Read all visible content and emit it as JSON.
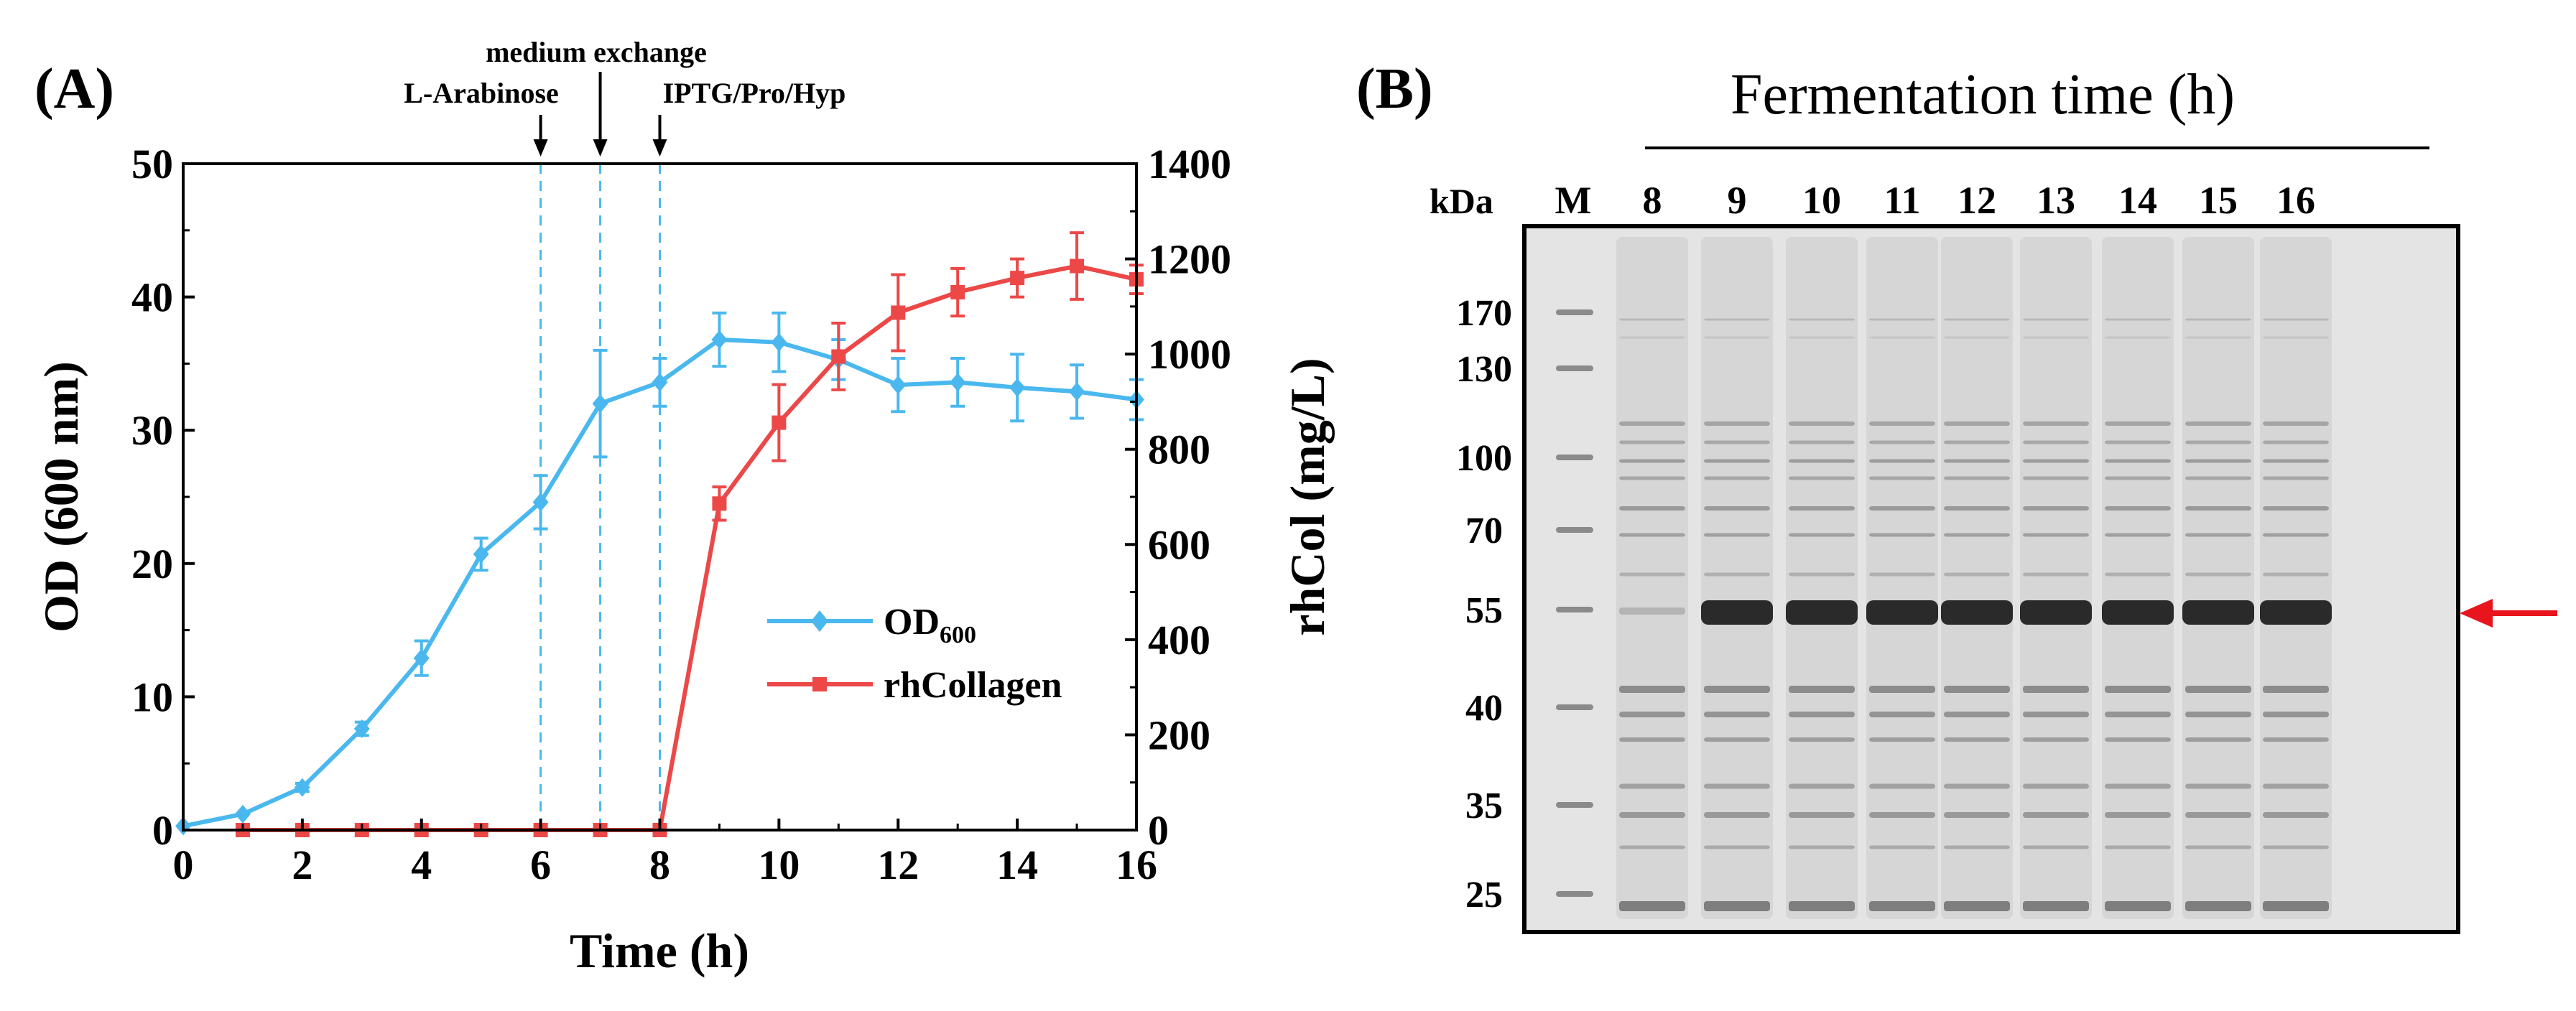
{
  "panel_a": {
    "label": "(A)",
    "annotations": {
      "medium_exchange": "medium exchange",
      "arabinose": "L-Arabinose",
      "iptg": "IPTG/Pro/Hyp"
    },
    "legend": {
      "od_main": "OD",
      "od_sub": "600",
      "rh": "rhCollagen"
    }
  },
  "panel_b": {
    "label": "(B)",
    "title": "Fermentation time (h)",
    "kda_label": "kDa",
    "marker_lane": "M",
    "lanes": [
      "8",
      "9",
      "10",
      "11",
      "12",
      "13",
      "14",
      "15",
      "16"
    ],
    "mw_markers": [
      "170",
      "130",
      "100",
      "70",
      "55",
      "40",
      "35",
      "25"
    ],
    "target_band_kda": 55,
    "arrow_color": "#e8141e"
  },
  "chart_data": {
    "type": "line",
    "title": "",
    "xlabel": "Time (h)",
    "ylabel_left": "OD (600 nm)",
    "ylabel_right": "rhCol (mg/L)",
    "xlim": [
      0,
      16
    ],
    "ylim_left": [
      0,
      50
    ],
    "ylim_right": [
      0,
      1400
    ],
    "xticks": [
      0,
      2,
      4,
      6,
      8,
      10,
      12,
      14,
      16
    ],
    "yticks_left": [
      0,
      10,
      20,
      30,
      40,
      50
    ],
    "yticks_right": [
      0,
      200,
      400,
      600,
      800,
      1000,
      1200,
      1400
    ],
    "legend_position": "center-right",
    "vlines": [
      6,
      7,
      8
    ],
    "series": [
      {
        "name": "OD600",
        "axis": "left",
        "color": "#4ab8ee",
        "marker": "diamond",
        "x": [
          0,
          1,
          2,
          3,
          4,
          5,
          6,
          7,
          8,
          9,
          10,
          11,
          12,
          13,
          14,
          15,
          16
        ],
        "y": [
          0.3,
          1.2,
          3.2,
          7.6,
          12.9,
          20.7,
          24.6,
          32.0,
          33.6,
          36.8,
          36.6,
          35.3,
          33.4,
          33.6,
          33.2,
          32.9,
          32.3
        ],
        "err": [
          0,
          0,
          0.3,
          0.5,
          1.3,
          1.2,
          2.0,
          4.0,
          1.8,
          2.0,
          2.2,
          1.5,
          2.0,
          1.8,
          2.5,
          2.0,
          1.5
        ]
      },
      {
        "name": "rhCollagen",
        "axis": "right",
        "color": "#ec4848",
        "marker": "square",
        "x": [
          1,
          2,
          3,
          4,
          5,
          6,
          7,
          8,
          9,
          10,
          11,
          12,
          13,
          14,
          15,
          16
        ],
        "y": [
          0,
          0,
          0,
          0,
          0,
          0,
          0,
          0,
          686,
          856,
          995,
          1087,
          1130,
          1160,
          1185,
          1157
        ],
        "err": [
          0,
          0,
          0,
          0,
          0,
          0,
          0,
          0,
          35,
          80,
          70,
          80,
          50,
          40,
          70,
          30
        ]
      }
    ]
  }
}
